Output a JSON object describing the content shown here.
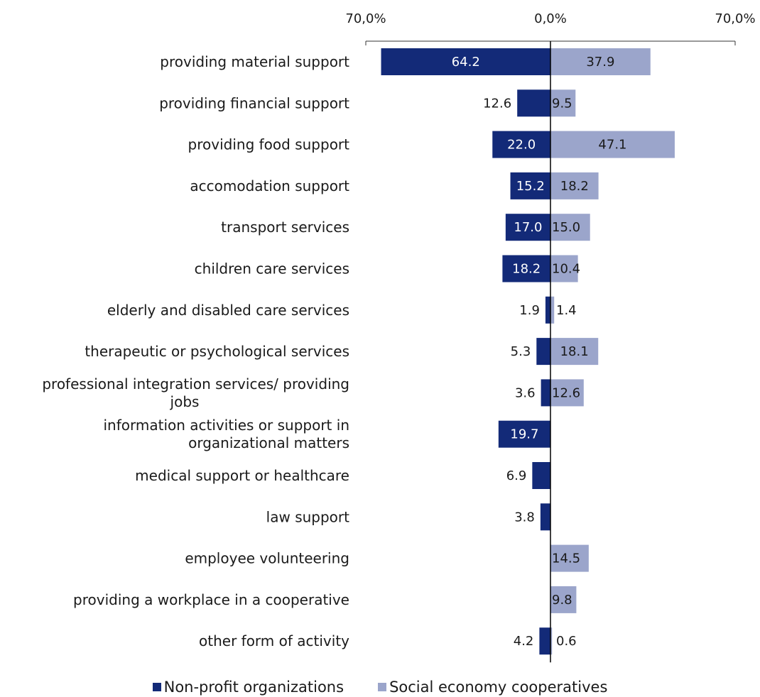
{
  "chart_data": {
    "type": "bar",
    "orientation": "horizontal",
    "layout": "diverging",
    "categories": [
      "providing material support",
      "providing financial support",
      "providing food support",
      "accomodation support",
      "transport services",
      "children care services",
      "elderly and disabled care services",
      "therapeutic or psychological services",
      "professional integration services/ providing jobs",
      "information activities or support in organizational matters",
      "medical support or healthcare",
      "law support",
      "employee volunteering",
      "providing a workplace in a cooperative",
      "other form of activity"
    ],
    "series": [
      {
        "name": "Non-profit organizations",
        "color": "#132a78",
        "side": "left",
        "values": [
          64.2,
          12.6,
          22.0,
          15.2,
          17.0,
          18.2,
          1.9,
          5.3,
          3.6,
          19.7,
          6.9,
          3.8,
          null,
          null,
          4.2
        ],
        "labels": [
          "64.2",
          "12.6",
          "22.0",
          "15.2",
          "17.0",
          "18.2",
          "1.9",
          "5.3",
          "3.6",
          "19.7",
          "6.9",
          "3.8",
          null,
          null,
          "4.2"
        ]
      },
      {
        "name": "Social economy cooperatives",
        "color": "#9ba5cb",
        "side": "right",
        "values": [
          37.9,
          9.5,
          47.1,
          18.2,
          15.0,
          10.4,
          1.4,
          18.1,
          12.6,
          null,
          null,
          null,
          14.5,
          9.8,
          0.6
        ],
        "labels": [
          "37.9",
          "9.5",
          "47.1",
          "18.2",
          "15.0",
          "10.4",
          "1.4",
          "18.1",
          "12.6",
          null,
          null,
          null,
          "14.5",
          "9.8",
          "0.6"
        ]
      }
    ],
    "xlim": [
      -70,
      70
    ],
    "ticks": [
      {
        "value": -70,
        "label": "70,0%"
      },
      {
        "value": 0,
        "label": "0,0%"
      },
      {
        "value": 70,
        "label": "70,0%"
      }
    ],
    "axis_position": "top",
    "grid": false,
    "legend_position": "bottom"
  }
}
